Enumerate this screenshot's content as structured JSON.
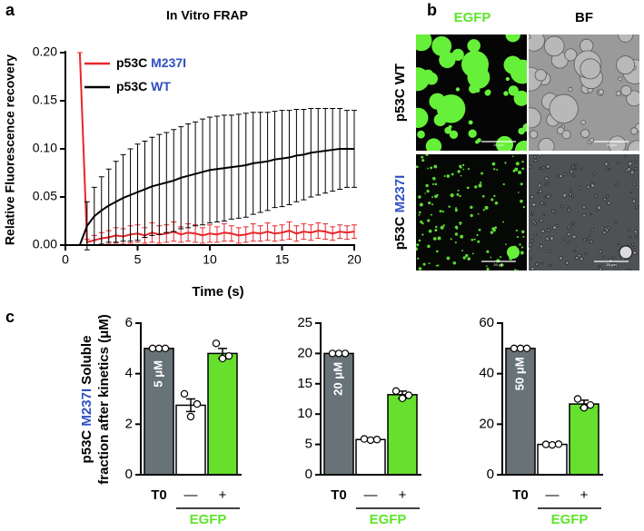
{
  "panel_labels": [
    "a",
    "b",
    "c"
  ],
  "microscopy": {
    "columns": [
      "EGFP",
      "BF"
    ],
    "rows": [
      "p53C WT",
      "p53C M237I"
    ],
    "scale_bar": "20 μm"
  },
  "chart_data": [
    {
      "type": "line",
      "title": "In Vitro FRAP",
      "xlabel": "Time (s)",
      "ylabel": "Relative Fluorescence recovery",
      "xlim": [
        0,
        20
      ],
      "xticks": [
        0,
        5,
        10,
        15,
        20
      ],
      "ylim": [
        0,
        0.2
      ],
      "yticks": [
        {
          "value": 0,
          "label": "0.00"
        },
        {
          "value": 0.05,
          "label": "0.05"
        },
        {
          "value": 0.1,
          "label": "0.10"
        },
        {
          "value": 0.15,
          "label": "0.15"
        },
        {
          "value": 0.2,
          "label": "0.20"
        }
      ],
      "x": [
        1,
        1.5,
        2,
        2.5,
        3,
        3.5,
        4,
        4.5,
        5,
        5.5,
        6,
        6.5,
        7,
        7.5,
        8,
        8.5,
        9,
        9.5,
        10,
        10.5,
        11,
        11.5,
        12,
        12.5,
        13,
        13.5,
        14,
        14.5,
        15,
        15.5,
        16,
        16.5,
        17,
        17.5,
        18,
        18.5,
        19,
        19.5,
        20
      ],
      "series": [
        {
          "name": "p53C M237I",
          "color": "#e8262b",
          "values": [
            0.2,
            0.003,
            0.005,
            0.007,
            0.008,
            0.01,
            0.009,
            0.011,
            0.012,
            0.01,
            0.013,
            0.011,
            0.012,
            0.014,
            0.011,
            0.013,
            0.012,
            0.01,
            0.012,
            0.011,
            0.013,
            0.012,
            0.01,
            0.011,
            0.013,
            0.012,
            0.014,
            0.012,
            0.013,
            0.015,
            0.012,
            0.014,
            0.013,
            0.015,
            0.014,
            0.012,
            0.014,
            0.013,
            0.014
          ],
          "errors": [
            0,
            0.003,
            0.005,
            0.006,
            0.007,
            0.008,
            0.008,
            0.009,
            0.009,
            0.008,
            0.01,
            0.009,
            0.009,
            0.01,
            0.008,
            0.009,
            0.009,
            0.008,
            0.009,
            0.008,
            0.009,
            0.008,
            0.008,
            0.008,
            0.009,
            0.008,
            0.009,
            0.008,
            0.008,
            0.009,
            0.008,
            0.008,
            0.008,
            0.008,
            0.008,
            0.007,
            0.007,
            0.007,
            0.007
          ]
        },
        {
          "name": "p53C WT",
          "color": "#000000",
          "values": [
            0.0,
            0.02,
            0.03,
            0.036,
            0.041,
            0.045,
            0.049,
            0.052,
            0.055,
            0.058,
            0.061,
            0.063,
            0.065,
            0.067,
            0.07,
            0.072,
            0.074,
            0.076,
            0.078,
            0.079,
            0.08,
            0.081,
            0.082,
            0.083,
            0.085,
            0.086,
            0.087,
            0.089,
            0.09,
            0.091,
            0.093,
            0.094,
            0.096,
            0.097,
            0.098,
            0.099,
            0.1,
            0.1,
            0.1
          ],
          "errors": [
            0,
            0.025,
            0.03,
            0.035,
            0.038,
            0.042,
            0.045,
            0.048,
            0.05,
            0.05,
            0.051,
            0.052,
            0.052,
            0.053,
            0.053,
            0.054,
            0.054,
            0.055,
            0.055,
            0.055,
            0.055,
            0.054,
            0.054,
            0.054,
            0.053,
            0.052,
            0.051,
            0.05,
            0.05,
            0.049,
            0.048,
            0.047,
            0.046,
            0.045,
            0.044,
            0.043,
            0.042,
            0.04,
            0.04
          ]
        }
      ]
    },
    {
      "type": "bar",
      "ylabel": [
        "p53C M237I Soluble",
        "fraction after kinetics (μM)"
      ],
      "group_label": "EGFP",
      "bar_label": "5 μM",
      "categories": [
        "T0",
        "—",
        "+"
      ],
      "colors": [
        "#687378",
        "#ffffff",
        "#66e02c"
      ],
      "values": [
        5,
        2.75,
        4.8
      ],
      "errors": [
        0,
        0.25,
        0.2
      ],
      "points": [
        [
          5,
          5,
          5
        ],
        [
          3.2,
          2.3,
          2.8
        ],
        [
          5.2,
          4.6,
          4.7
        ]
      ],
      "ylim": [
        0,
        6
      ],
      "yticks": [
        0,
        2,
        4,
        6
      ]
    },
    {
      "type": "bar",
      "group_label": "EGFP",
      "bar_label": "20 μM",
      "categories": [
        "T0",
        "—",
        "+"
      ],
      "colors": [
        "#687378",
        "#ffffff",
        "#66e02c"
      ],
      "values": [
        20,
        5.8,
        13.2
      ],
      "errors": [
        0,
        0.2,
        0.6
      ],
      "points": [
        [
          20,
          20,
          20
        ],
        [
          5.9,
          5.7,
          5.8
        ],
        [
          13.8,
          12.6,
          13.1
        ]
      ],
      "ylim": [
        0,
        25
      ],
      "yticks": [
        0,
        5,
        10,
        15,
        20,
        25
      ]
    },
    {
      "type": "bar",
      "group_label": "EGFP",
      "bar_label": "50 μM",
      "categories": [
        "T0",
        "—",
        "+"
      ],
      "colors": [
        "#687378",
        "#ffffff",
        "#66e02c"
      ],
      "values": [
        50,
        12,
        28
      ],
      "errors": [
        0,
        0.3,
        1.5
      ],
      "points": [
        [
          50,
          50,
          50
        ],
        [
          12,
          11.8,
          12.1
        ],
        [
          30,
          26.5,
          27.6
        ]
      ],
      "ylim": [
        0,
        60
      ],
      "yticks": [
        0,
        20,
        40,
        60
      ]
    }
  ]
}
